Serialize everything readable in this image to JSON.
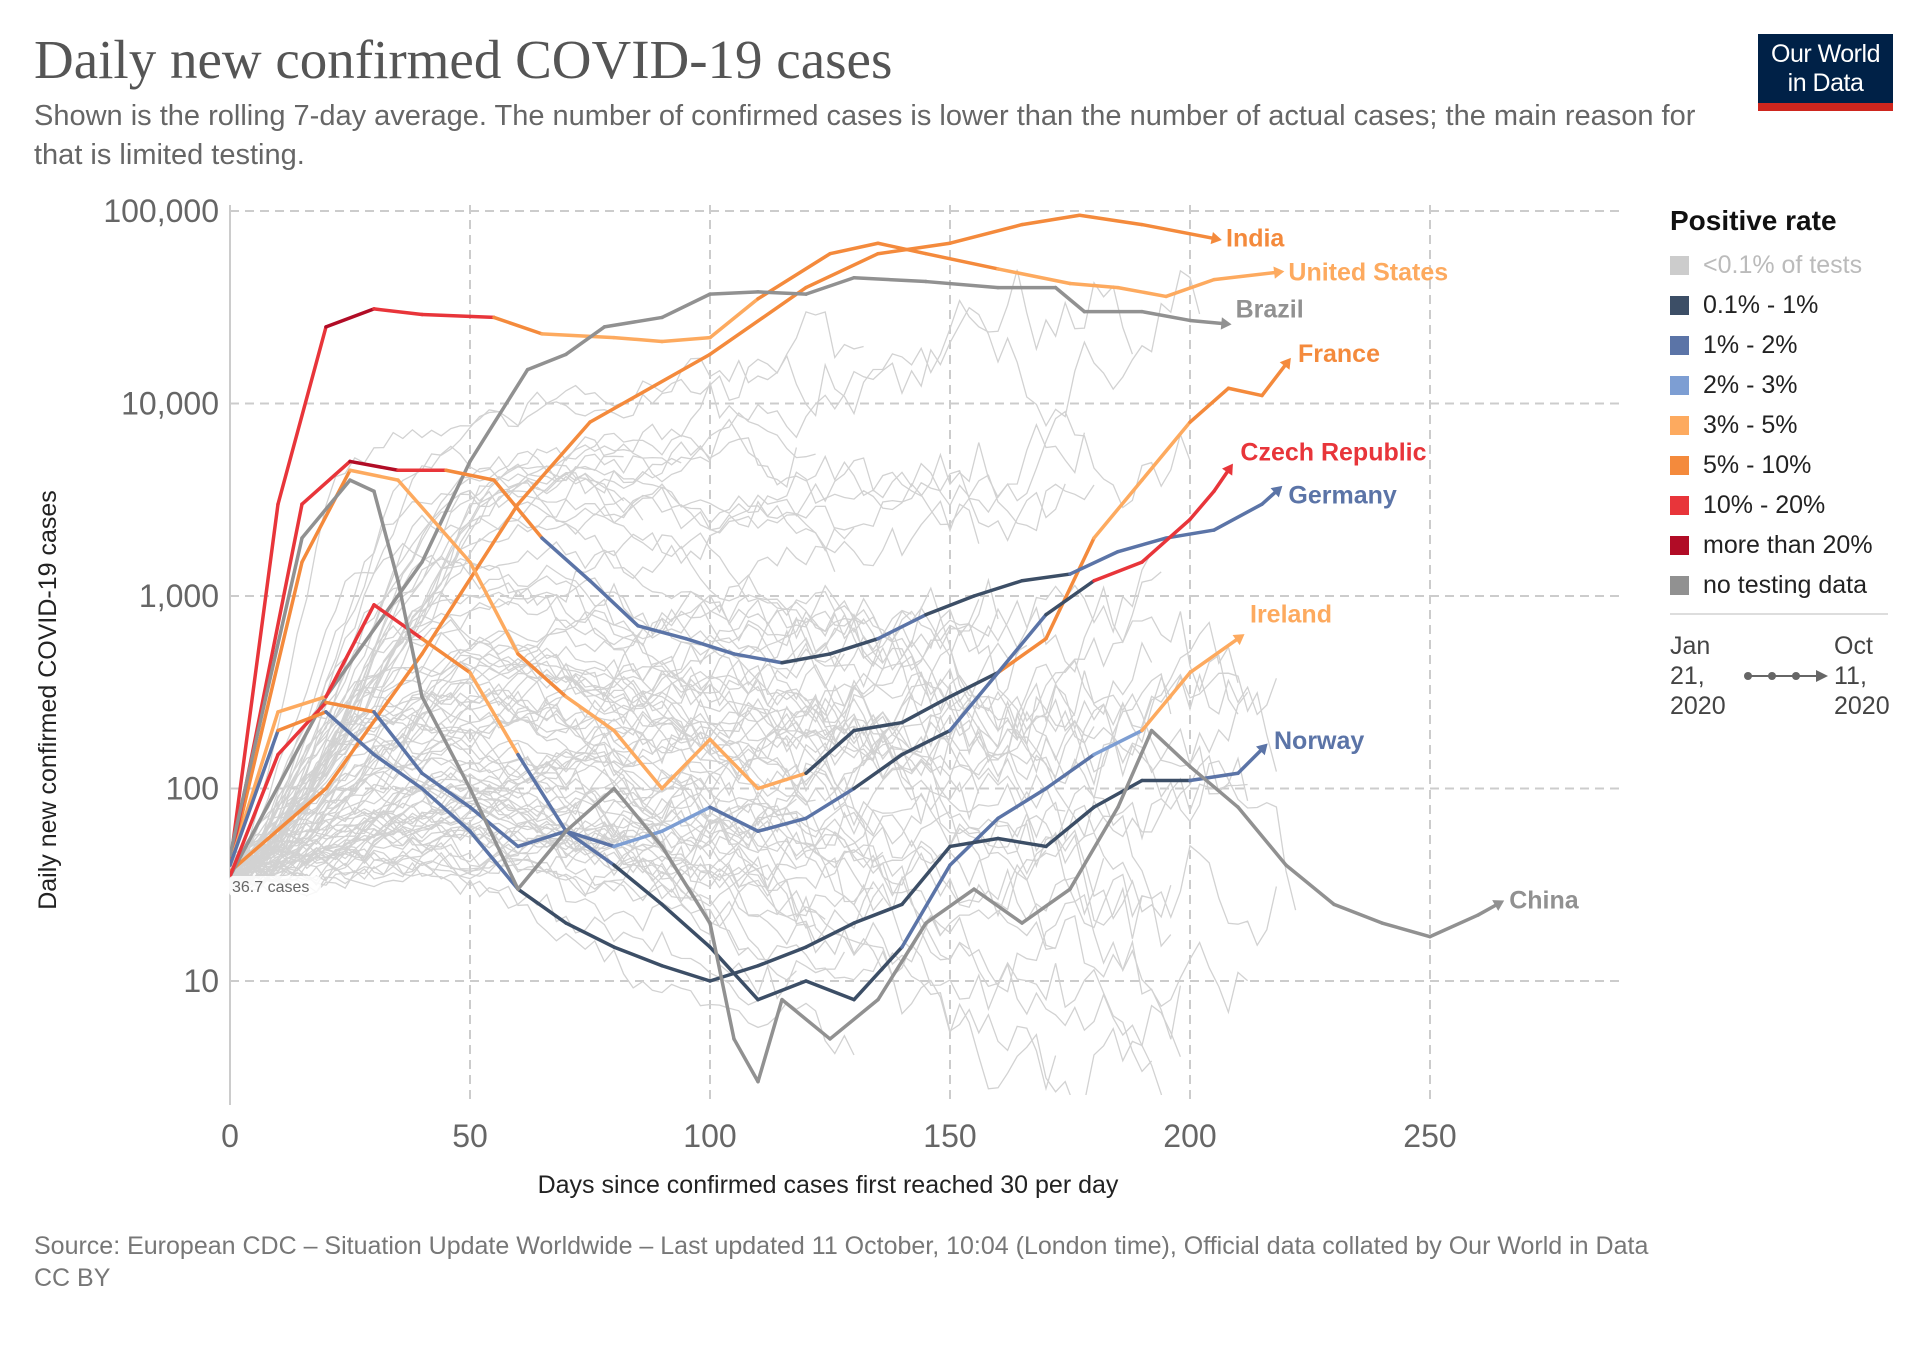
{
  "title": "Daily new confirmed COVID-19 cases",
  "subtitle": "Shown is the rolling 7-day average. The number of confirmed cases is lower than the number of actual cases; the main reason for that is limited testing.",
  "logo": {
    "line1": "Our World",
    "line2": "in Data"
  },
  "legend": {
    "title": "Positive rate",
    "items": [
      {
        "key": "lt01",
        "label": "<0.1% of tests",
        "color": "#cccccc"
      },
      {
        "key": "d",
        "label": "0.1% - 1%",
        "color": "#3c4e66"
      },
      {
        "key": "b",
        "label": "1% - 2%",
        "color": "#5b74a7"
      },
      {
        "key": "lb",
        "label": "2% - 3%",
        "color": "#7d9ed3"
      },
      {
        "key": "lo",
        "label": "3% - 5%",
        "color": "#fdaa5f"
      },
      {
        "key": "o",
        "label": "5% - 10%",
        "color": "#f48a3c"
      },
      {
        "key": "r",
        "label": "10% - 20%",
        "color": "#e8353a"
      },
      {
        "key": "dr",
        "label": "more than 20%",
        "color": "#b10c26"
      },
      {
        "key": "g",
        "label": "no testing data",
        "color": "#919191"
      }
    ],
    "timeline": {
      "start": "Jan 21, 2020",
      "end": "Oct 11, 2020"
    }
  },
  "footer": {
    "source": "Source: European CDC – Situation Update Worldwide – Last updated 11 October, 10:04 (London time), Official data collated by Our World in Data",
    "license": "CC BY"
  },
  "chart_data": {
    "type": "line",
    "xlabel": "Days since confirmed cases first reached 30 per day",
    "ylabel": "Daily new confirmed COVID-19 cases",
    "y_scale": "log",
    "xlim": [
      0,
      290
    ],
    "ylim": [
      2.3,
      100000
    ],
    "x_ticks": [
      0,
      50,
      100,
      150,
      200,
      250
    ],
    "x_tick_labels": [
      "0",
      "50",
      "100",
      "150",
      "200",
      "250"
    ],
    "y_ticks": [
      10,
      100,
      1000,
      10000,
      100000
    ],
    "y_tick_labels": [
      "10",
      "100",
      "1,000",
      "10,000",
      "100,000"
    ],
    "grid": true,
    "color_by": "positive rate",
    "start_annotation": "36.7 cases",
    "series": [
      {
        "name": "India",
        "points": [
          [
            0,
            37,
            "o"
          ],
          [
            20,
            100,
            "o"
          ],
          [
            40,
            500,
            "o"
          ],
          [
            60,
            3000,
            "o"
          ],
          [
            75,
            8000,
            "o"
          ],
          [
            100,
            18000,
            "o"
          ],
          [
            120,
            40000,
            "o"
          ],
          [
            135,
            60000,
            "o"
          ],
          [
            150,
            68000,
            "o"
          ],
          [
            165,
            85000,
            "o"
          ],
          [
            177,
            95000,
            "o"
          ],
          [
            190,
            85000,
            "o"
          ],
          [
            205,
            72000,
            "o"
          ]
        ]
      },
      {
        "name": "United States",
        "points": [
          [
            0,
            40,
            "r"
          ],
          [
            10,
            3000,
            "r"
          ],
          [
            20,
            25000,
            "r"
          ],
          [
            30,
            31000,
            "dr"
          ],
          [
            40,
            29000,
            "r"
          ],
          [
            55,
            28000,
            "r"
          ],
          [
            65,
            23000,
            "o"
          ],
          [
            80,
            22000,
            "lo"
          ],
          [
            90,
            21000,
            "lo"
          ],
          [
            100,
            22000,
            "lo"
          ],
          [
            110,
            35000,
            "lo"
          ],
          [
            125,
            60000,
            "o"
          ],
          [
            135,
            68000,
            "o"
          ],
          [
            145,
            60000,
            "o"
          ],
          [
            160,
            50000,
            "o"
          ],
          [
            175,
            42000,
            "lo"
          ],
          [
            185,
            40000,
            "lo"
          ],
          [
            195,
            36000,
            "lo"
          ],
          [
            205,
            44000,
            "lo"
          ],
          [
            218,
            48000,
            "lo"
          ]
        ]
      },
      {
        "name": "Brazil",
        "points": [
          [
            0,
            35,
            "g"
          ],
          [
            20,
            300,
            "g"
          ],
          [
            40,
            1500,
            "g"
          ],
          [
            50,
            5000,
            "g"
          ],
          [
            62,
            15000,
            "g"
          ],
          [
            70,
            18000,
            "g"
          ],
          [
            78,
            25000,
            "g"
          ],
          [
            90,
            28000,
            "g"
          ],
          [
            100,
            37000,
            "g"
          ],
          [
            110,
            38000,
            "g"
          ],
          [
            120,
            37000,
            "g"
          ],
          [
            130,
            45000,
            "g"
          ],
          [
            145,
            43000,
            "g"
          ],
          [
            160,
            40000,
            "g"
          ],
          [
            172,
            40000,
            "g"
          ],
          [
            178,
            30000,
            "g"
          ],
          [
            190,
            30000,
            "g"
          ],
          [
            200,
            27000,
            "g"
          ],
          [
            207,
            26000,
            "g"
          ]
        ]
      },
      {
        "name": "France",
        "points": [
          [
            0,
            40,
            "o"
          ],
          [
            15,
            1500,
            "o"
          ],
          [
            25,
            4500,
            "o"
          ],
          [
            35,
            4000,
            "lo"
          ],
          [
            50,
            1500,
            "lo"
          ],
          [
            60,
            500,
            "lo"
          ],
          [
            70,
            300,
            "o"
          ],
          [
            80,
            200,
            "lo"
          ],
          [
            90,
            100,
            "lo"
          ],
          [
            100,
            180,
            "lo"
          ],
          [
            110,
            100,
            "lo"
          ],
          [
            120,
            120,
            "lo"
          ],
          [
            130,
            200,
            "d"
          ],
          [
            140,
            220,
            "d"
          ],
          [
            150,
            300,
            "d"
          ],
          [
            160,
            400,
            "d"
          ],
          [
            170,
            600,
            "o"
          ],
          [
            180,
            2000,
            "o"
          ],
          [
            190,
            4000,
            "lo"
          ],
          [
            200,
            8000,
            "lo"
          ],
          [
            208,
            12000,
            "o"
          ],
          [
            215,
            11000,
            "o"
          ],
          [
            220,
            16000,
            "o"
          ]
        ]
      },
      {
        "name": "Germany",
        "points": [
          [
            0,
            40,
            "o"
          ],
          [
            15,
            3000,
            "r"
          ],
          [
            25,
            5000,
            "r"
          ],
          [
            35,
            4500,
            "dr"
          ],
          [
            45,
            4500,
            "r"
          ],
          [
            55,
            4000,
            "o"
          ],
          [
            65,
            2000,
            "o"
          ],
          [
            75,
            1200,
            "b"
          ],
          [
            85,
            700,
            "b"
          ],
          [
            95,
            600,
            "b"
          ],
          [
            105,
            500,
            "b"
          ],
          [
            115,
            450,
            "b"
          ],
          [
            125,
            500,
            "d"
          ],
          [
            135,
            600,
            "d"
          ],
          [
            145,
            800,
            "b"
          ],
          [
            155,
            1000,
            "d"
          ],
          [
            165,
            1200,
            "d"
          ],
          [
            175,
            1300,
            "d"
          ],
          [
            185,
            1700,
            "b"
          ],
          [
            195,
            2000,
            "b"
          ],
          [
            205,
            2200,
            "b"
          ],
          [
            215,
            3000,
            "b"
          ],
          [
            218,
            3500,
            "b"
          ]
        ]
      },
      {
        "name": "Czech Republic",
        "points": [
          [
            0,
            35,
            "o"
          ],
          [
            10,
            150,
            "r"
          ],
          [
            20,
            280,
            "r"
          ],
          [
            30,
            250,
            "o"
          ],
          [
            40,
            120,
            "b"
          ],
          [
            50,
            80,
            "b"
          ],
          [
            60,
            50,
            "b"
          ],
          [
            70,
            60,
            "b"
          ],
          [
            80,
            50,
            "b"
          ],
          [
            90,
            60,
            "lb"
          ],
          [
            100,
            80,
            "lb"
          ],
          [
            110,
            60,
            "b"
          ],
          [
            120,
            70,
            "b"
          ],
          [
            130,
            100,
            "b"
          ],
          [
            140,
            150,
            "d"
          ],
          [
            150,
            200,
            "d"
          ],
          [
            160,
            400,
            "b"
          ],
          [
            170,
            800,
            "b"
          ],
          [
            180,
            1200,
            "d"
          ],
          [
            190,
            1500,
            "r"
          ],
          [
            200,
            2500,
            "r"
          ],
          [
            205,
            3500,
            "r"
          ],
          [
            208,
            4500,
            "r"
          ]
        ]
      },
      {
        "name": "Ireland",
        "points": [
          [
            0,
            40,
            "lo"
          ],
          [
            10,
            250,
            "lo"
          ],
          [
            20,
            300,
            "lo"
          ],
          [
            30,
            900,
            "r"
          ],
          [
            40,
            600,
            "r"
          ],
          [
            50,
            400,
            "o"
          ],
          [
            60,
            150,
            "lo"
          ],
          [
            70,
            60,
            "b"
          ],
          [
            80,
            40,
            "b"
          ],
          [
            90,
            25,
            "d"
          ],
          [
            100,
            15,
            "d"
          ],
          [
            110,
            8,
            "d"
          ],
          [
            120,
            10,
            "d"
          ],
          [
            130,
            8,
            "d"
          ],
          [
            140,
            15,
            "d"
          ],
          [
            150,
            40,
            "b"
          ],
          [
            160,
            70,
            "b"
          ],
          [
            170,
            100,
            "b"
          ],
          [
            180,
            150,
            "b"
          ],
          [
            190,
            200,
            "lb"
          ],
          [
            200,
            400,
            "lo"
          ],
          [
            210,
            600,
            "lo"
          ]
        ]
      },
      {
        "name": "Norway",
        "points": [
          [
            0,
            40,
            "b"
          ],
          [
            10,
            200,
            "b"
          ],
          [
            20,
            250,
            "o"
          ],
          [
            30,
            150,
            "b"
          ],
          [
            40,
            100,
            "b"
          ],
          [
            50,
            60,
            "b"
          ],
          [
            60,
            30,
            "b"
          ],
          [
            70,
            20,
            "d"
          ],
          [
            80,
            15,
            "d"
          ],
          [
            90,
            12,
            "d"
          ],
          [
            100,
            10,
            "d"
          ],
          [
            110,
            12,
            "d"
          ],
          [
            120,
            15,
            "d"
          ],
          [
            130,
            20,
            "d"
          ],
          [
            140,
            25,
            "d"
          ],
          [
            150,
            50,
            "d"
          ],
          [
            160,
            55,
            "d"
          ],
          [
            170,
            50,
            "d"
          ],
          [
            180,
            80,
            "d"
          ],
          [
            190,
            110,
            "d"
          ],
          [
            200,
            110,
            "d"
          ],
          [
            210,
            120,
            "b"
          ],
          [
            215,
            160,
            "b"
          ]
        ]
      },
      {
        "name": "China",
        "points": [
          [
            0,
            45,
            "g"
          ],
          [
            15,
            2000,
            "g"
          ],
          [
            25,
            4000,
            "g"
          ],
          [
            30,
            3500,
            "g"
          ],
          [
            35,
            1200,
            "g"
          ],
          [
            40,
            300,
            "g"
          ],
          [
            50,
            100,
            "g"
          ],
          [
            60,
            30,
            "g"
          ],
          [
            70,
            60,
            "g"
          ],
          [
            80,
            100,
            "g"
          ],
          [
            90,
            50,
            "g"
          ],
          [
            100,
            20,
            "g"
          ],
          [
            105,
            5,
            "g"
          ],
          [
            110,
            3,
            "g"
          ],
          [
            115,
            8,
            "g"
          ],
          [
            125,
            5,
            "g"
          ],
          [
            135,
            8,
            "g"
          ],
          [
            145,
            20,
            "g"
          ],
          [
            155,
            30,
            "g"
          ],
          [
            165,
            20,
            "g"
          ],
          [
            175,
            30,
            "g"
          ],
          [
            185,
            80,
            "g"
          ],
          [
            192,
            200,
            "g"
          ],
          [
            200,
            130,
            "g"
          ],
          [
            210,
            80,
            "g"
          ],
          [
            220,
            40,
            "g"
          ],
          [
            230,
            25,
            "g"
          ],
          [
            240,
            20,
            "g"
          ],
          [
            250,
            17,
            "g"
          ],
          [
            260,
            22,
            "g"
          ],
          [
            264,
            25,
            "g"
          ]
        ]
      }
    ]
  }
}
